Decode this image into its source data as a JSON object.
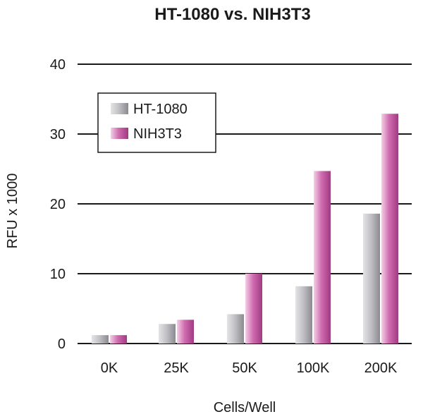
{
  "chart_data": {
    "type": "bar",
    "title": "HT-1080 vs. NIH3T3",
    "xlabel": "Cells/Well",
    "ylabel": "RFU x 1000",
    "categories": [
      "0K",
      "25K",
      "50K",
      "100K",
      "200K"
    ],
    "series": [
      {
        "name": "HT-1080",
        "values": [
          1.2,
          2.8,
          4.2,
          8.2,
          18.6
        ],
        "color": "#a8a8ac"
      },
      {
        "name": "NIH3T3",
        "values": [
          1.2,
          3.4,
          10.0,
          24.7,
          32.9
        ],
        "color": "#c2509e"
      }
    ],
    "ylim": [
      0,
      40
    ],
    "yticks": [
      0,
      10,
      20,
      30,
      40
    ],
    "grid": true,
    "legend": "top-left"
  }
}
